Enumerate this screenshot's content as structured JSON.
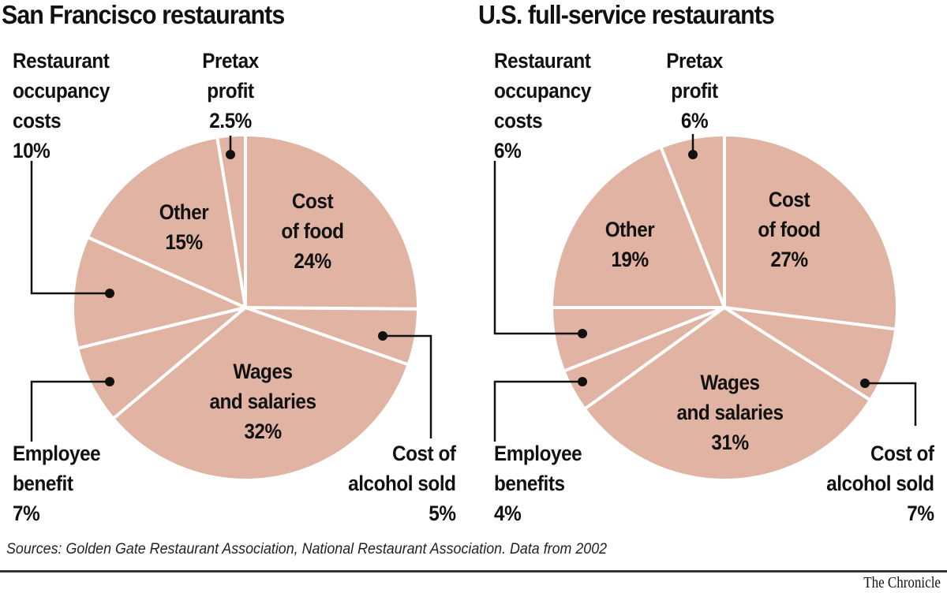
{
  "colors": {
    "slice": "#e0b3a2",
    "separator": "#ffffff",
    "leader": "#111111"
  },
  "chart_data": [
    {
      "type": "pie",
      "title": "San Francisco restaurants",
      "start": "12 o'clock",
      "direction": "clockwise",
      "slices": [
        {
          "label": "Cost of food",
          "value": 24,
          "text": [
            "Cost",
            "of food",
            "24%"
          ]
        },
        {
          "label": "Cost of alcohol sold",
          "value": 5,
          "text": [
            "Cost of",
            "alcohol sold",
            "5%"
          ]
        },
        {
          "label": "Wages and salaries",
          "value": 32,
          "text": [
            "Wages",
            "and salaries",
            "32%"
          ]
        },
        {
          "label": "Employee benefit",
          "value": 7,
          "text": [
            "Employee",
            "benefit",
            "7%"
          ]
        },
        {
          "label": "Restaurant occupancy costs",
          "value": 10,
          "text": [
            "Restaurant",
            "occupancy",
            "costs",
            "10%"
          ]
        },
        {
          "label": "Other",
          "value": 15,
          "text": [
            "Other",
            "15%"
          ]
        },
        {
          "label": "Pretax profit",
          "value": 2.5,
          "text": [
            "Pretax",
            "profit",
            "2.5%"
          ]
        }
      ]
    },
    {
      "type": "pie",
      "title": "U.S. full-service restaurants",
      "start": "12 o'clock",
      "direction": "clockwise",
      "slices": [
        {
          "label": "Cost of food",
          "value": 27,
          "text": [
            "Cost",
            "of food",
            "27%"
          ]
        },
        {
          "label": "Cost of alcohol sold",
          "value": 7,
          "text": [
            "Cost of",
            "alcohol sold",
            "7%"
          ]
        },
        {
          "label": "Wages and salaries",
          "value": 31,
          "text": [
            "Wages",
            "and salaries",
            "31%"
          ]
        },
        {
          "label": "Employee benefits",
          "value": 4,
          "text": [
            "Employee",
            "benefits",
            "4%"
          ]
        },
        {
          "label": "Restaurant occupancy costs",
          "value": 6,
          "text": [
            "Restaurant",
            "occupancy",
            "costs",
            "6%"
          ]
        },
        {
          "label": "Other",
          "value": 19,
          "text": [
            "Other",
            "19%"
          ]
        },
        {
          "label": "Pretax profit",
          "value": 6,
          "text": [
            "Pretax",
            "profit",
            "6%"
          ]
        }
      ]
    }
  ],
  "footer": {
    "sources": "Sources: Golden Gate Restaurant Association, National Restaurant Association. Data from 2002",
    "credit": "The Chronicle"
  }
}
